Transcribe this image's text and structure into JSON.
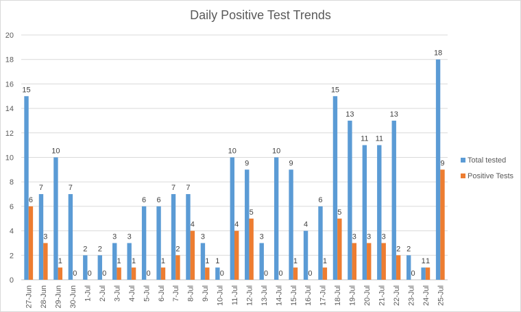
{
  "chart_data": {
    "type": "bar",
    "title": "Daily Positive Test Trends",
    "xlabel": "",
    "ylabel": "",
    "ylim": [
      0,
      20
    ],
    "yticks": [
      0,
      2,
      4,
      6,
      8,
      10,
      12,
      14,
      16,
      18,
      20
    ],
    "grid": true,
    "legend_position": "right",
    "categories": [
      "27-Jun",
      "28-Jun",
      "29-Jun",
      "30-Jun",
      "1-Jul",
      "2-Jul",
      "3-Jul",
      "4-Jul",
      "5-Jul",
      "6-Jul",
      "7-Jul",
      "8-Jul",
      "9-Jul",
      "10-Jul",
      "11-Jul",
      "12-Jul",
      "13-Jul",
      "14-Jul",
      "15-Jul",
      "16-Jul",
      "17-Jul",
      "18-Jul",
      "19-Jul",
      "20-Jul",
      "21-Jul",
      "22-Jul",
      "23-Jul",
      "24-Jul",
      "25-Jul"
    ],
    "series": [
      {
        "name": "Total tested",
        "color": "#5B9BD5",
        "values": [
          15,
          7,
          10,
          7,
          2,
          2,
          3,
          3,
          6,
          6,
          7,
          7,
          3,
          1,
          10,
          9,
          3,
          10,
          9,
          4,
          6,
          15,
          13,
          11,
          11,
          13,
          2,
          1,
          18
        ]
      },
      {
        "name": "Positive Tests",
        "color": "#ED7D31",
        "values": [
          6,
          3,
          1,
          0,
          0,
          0,
          1,
          1,
          0,
          1,
          2,
          4,
          1,
          0,
          4,
          5,
          0,
          0,
          1,
          0,
          1,
          5,
          3,
          3,
          3,
          2,
          0,
          1,
          9
        ]
      }
    ]
  }
}
